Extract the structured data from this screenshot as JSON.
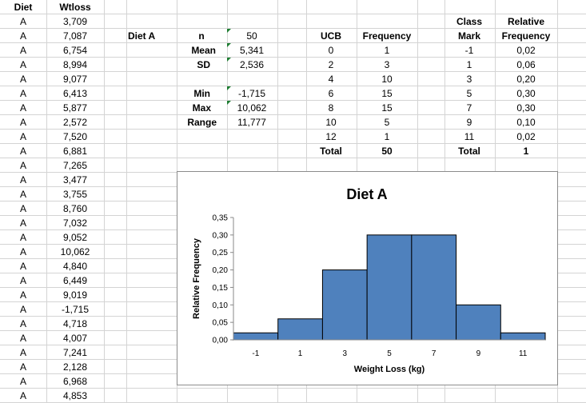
{
  "sheet": {
    "col_a_header": "Diet",
    "col_b_header": "Wtloss",
    "rows": [
      {
        "diet": "A",
        "wtloss": "3,709"
      },
      {
        "diet": "A",
        "wtloss": "7,087"
      },
      {
        "diet": "A",
        "wtloss": "6,754"
      },
      {
        "diet": "A",
        "wtloss": "8,994"
      },
      {
        "diet": "A",
        "wtloss": "9,077"
      },
      {
        "diet": "A",
        "wtloss": "6,413"
      },
      {
        "diet": "A",
        "wtloss": "5,877"
      },
      {
        "diet": "A",
        "wtloss": "2,572"
      },
      {
        "diet": "A",
        "wtloss": "7,520"
      },
      {
        "diet": "A",
        "wtloss": "6,881"
      },
      {
        "diet": "A",
        "wtloss": "7,265"
      },
      {
        "diet": "A",
        "wtloss": "3,477"
      },
      {
        "diet": "A",
        "wtloss": "3,755"
      },
      {
        "diet": "A",
        "wtloss": "8,760"
      },
      {
        "diet": "A",
        "wtloss": "7,032"
      },
      {
        "diet": "A",
        "wtloss": "9,052"
      },
      {
        "diet": "A",
        "wtloss": "10,062"
      },
      {
        "diet": "A",
        "wtloss": "4,840"
      },
      {
        "diet": "A",
        "wtloss": "6,449"
      },
      {
        "diet": "A",
        "wtloss": "9,019"
      },
      {
        "diet": "A",
        "wtloss": "-1,715"
      },
      {
        "diet": "A",
        "wtloss": "4,718"
      },
      {
        "diet": "A",
        "wtloss": "4,007"
      },
      {
        "diet": "A",
        "wtloss": "7,241"
      },
      {
        "diet": "A",
        "wtloss": "2,128"
      },
      {
        "diet": "A",
        "wtloss": "6,968"
      },
      {
        "diet": "A",
        "wtloss": "4,853"
      }
    ]
  },
  "stats": {
    "group_label": "Diet A",
    "n_label": "n",
    "n_value": "50",
    "mean_label": "Mean",
    "mean_value": "5,341",
    "sd_label": "SD",
    "sd_value": "2,536",
    "min_label": "Min",
    "min_value": "-1,715",
    "max_label": "Max",
    "max_value": "10,062",
    "range_label": "Range",
    "range_value": "11,777"
  },
  "freq": {
    "ucb_header": "UCB",
    "frequency_header": "Frequency",
    "class_header_1": "Class",
    "class_header_2": "Mark",
    "rel_header_1": "Relative",
    "rel_header_2": "Frequency",
    "rows": [
      {
        "ucb": "0",
        "frequency": "1",
        "class_mark": "-1",
        "rel": "0,02"
      },
      {
        "ucb": "2",
        "frequency": "3",
        "class_mark": "1",
        "rel": "0,06"
      },
      {
        "ucb": "4",
        "frequency": "10",
        "class_mark": "3",
        "rel": "0,20"
      },
      {
        "ucb": "6",
        "frequency": "15",
        "class_mark": "5",
        "rel": "0,30"
      },
      {
        "ucb": "8",
        "frequency": "15",
        "class_mark": "7",
        "rel": "0,30"
      },
      {
        "ucb": "10",
        "frequency": "5",
        "class_mark": "9",
        "rel": "0,10"
      },
      {
        "ucb": "12",
        "frequency": "1",
        "class_mark": "11",
        "rel": "0,02"
      }
    ],
    "total_label": "Total",
    "total_frequency": "50",
    "total_label_2": "Total",
    "total_rel": "1"
  },
  "chart_data": {
    "type": "bar",
    "title": "Diet A",
    "xlabel": "Weight Loss (kg)",
    "ylabel": "Relative Frequency",
    "categories": [
      "-1",
      "1",
      "3",
      "5",
      "7",
      "9",
      "11"
    ],
    "values": [
      0.02,
      0.06,
      0.2,
      0.3,
      0.3,
      0.1,
      0.02
    ],
    "ylim": [
      0,
      0.35
    ],
    "yticks": [
      "0,00",
      "0,05",
      "0,10",
      "0,15",
      "0,20",
      "0,25",
      "0,30",
      "0,35"
    ],
    "bar_color": "#4f81bd",
    "grid": false,
    "legend": "none"
  }
}
